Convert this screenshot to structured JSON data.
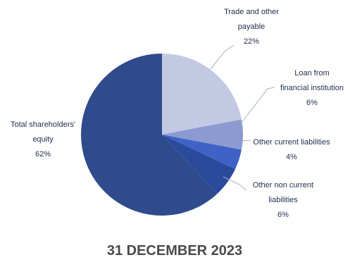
{
  "chart_data": {
    "type": "pie",
    "title": "31 DECEMBER 2023",
    "slices": [
      {
        "name_lines": [
          "Trade and other",
          "payable"
        ],
        "label": "22%",
        "value": 22,
        "color": "#c3c9e2"
      },
      {
        "name_lines": [
          "Loan from",
          "financial institution"
        ],
        "label": "6%",
        "value": 6,
        "color": "#8b9bd1"
      },
      {
        "name_lines": [
          "Other current liabilities"
        ],
        "label": "4%",
        "value": 4,
        "color": "#3f62c6"
      },
      {
        "name_lines": [
          "Other non current",
          "liabilities"
        ],
        "label": "6%",
        "value": 6,
        "color": "#2a4b9c"
      },
      {
        "name_lines": [
          "Total shareholders'",
          "equity"
        ],
        "label": "62%",
        "value": 62,
        "color": "#2f4b8c"
      }
    ]
  }
}
